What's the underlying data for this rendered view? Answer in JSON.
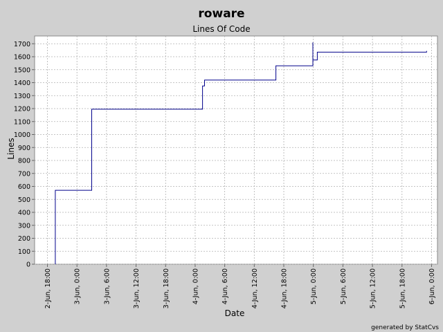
{
  "chart_data": {
    "type": "line",
    "title": "roware",
    "subtitle": "Lines Of Code",
    "xlabel": "Date",
    "ylabel": "Lines",
    "footer": "generated by StatCvs",
    "grid": true,
    "legend": "none",
    "colors": {
      "line": "#00008b",
      "background": "#d0d0d0",
      "plot_background": "#ffffff",
      "grid": "#b0b0b0"
    },
    "ylim": [
      0,
      1760
    ],
    "yticks": [
      0,
      100,
      200,
      300,
      400,
      500,
      600,
      700,
      800,
      900,
      1000,
      1100,
      1200,
      1300,
      1400,
      1500,
      1600,
      1700
    ],
    "xlim": [
      "2-Jun 15:24",
      "6-Jun 01:12"
    ],
    "xticks": [
      "2-Jun, 18:00",
      "3-Jun, 0:00",
      "3-Jun, 6:00",
      "3-Jun, 12:00",
      "3-Jun, 18:00",
      "4-Jun, 0:00",
      "4-Jun, 6:00",
      "4-Jun, 12:00",
      "4-Jun, 18:00",
      "5-Jun, 0:00",
      "5-Jun, 6:00",
      "5-Jun, 12:00",
      "5-Jun, 18:00",
      "6-Jun, 0:00"
    ],
    "xtick_hours": [
      18,
      24,
      30,
      36,
      42,
      48,
      54,
      60,
      66,
      72,
      78,
      84,
      90,
      96
    ],
    "series": [
      {
        "points": [
          {
            "x": "2-Jun 19:36",
            "y": 0
          },
          {
            "x": "2-Jun 19:36",
            "y": 570
          },
          {
            "x": "3-Jun 03:00",
            "y": 570
          },
          {
            "x": "3-Jun 03:00",
            "y": 1195
          },
          {
            "x": "4-Jun 01:30",
            "y": 1195
          },
          {
            "x": "4-Jun 01:30",
            "y": 1375
          },
          {
            "x": "4-Jun 01:54",
            "y": 1375
          },
          {
            "x": "4-Jun 01:54",
            "y": 1420
          },
          {
            "x": "4-Jun 16:24",
            "y": 1420
          },
          {
            "x": "4-Jun 16:24",
            "y": 1530
          },
          {
            "x": "4-Jun 23:54",
            "y": 1530
          },
          {
            "x": "4-Jun 23:54",
            "y": 1710
          },
          {
            "x": "4-Jun 23:54",
            "y": 1575
          },
          {
            "x": "5-Jun 00:48",
            "y": 1575
          },
          {
            "x": "5-Jun 00:48",
            "y": 1635
          },
          {
            "x": "5-Jun 23:00",
            "y": 1635
          },
          {
            "x": "5-Jun 23:00",
            "y": 1645
          }
        ],
        "hours": [
          19.6,
          19.6,
          27,
          27,
          49.5,
          49.5,
          49.9,
          49.9,
          64.4,
          64.4,
          71.9,
          71.9,
          71.9,
          72.8,
          72.8,
          95,
          95
        ]
      }
    ]
  }
}
